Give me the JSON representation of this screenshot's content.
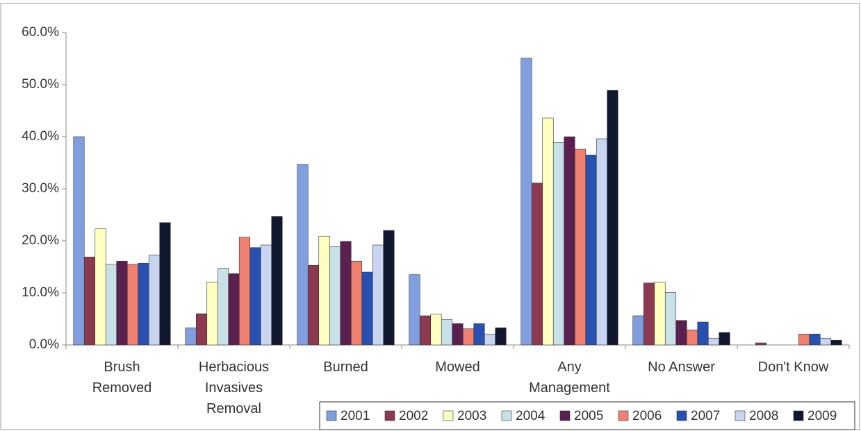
{
  "chart_data": {
    "type": "bar",
    "categories": [
      "Brush Removed",
      "Herbacious Invasives Removal",
      "Burned",
      "Mowed",
      "Any Management",
      "No Answer",
      "Don't Know"
    ],
    "series": [
      {
        "name": "2001",
        "color": "#7f9fdf",
        "values": [
          40.0,
          3.3,
          34.7,
          13.5,
          55.1,
          5.6,
          0
        ]
      },
      {
        "name": "2002",
        "color": "#8b3a52",
        "values": [
          16.9,
          6.0,
          15.3,
          5.6,
          31.1,
          11.9,
          0.4
        ]
      },
      {
        "name": "2003",
        "color": "#ffffc0",
        "values": [
          22.3,
          12.1,
          20.9,
          5.9,
          43.6,
          12.1,
          0
        ]
      },
      {
        "name": "2004",
        "color": "#c8e0e8",
        "values": [
          15.5,
          14.7,
          18.9,
          4.9,
          38.9,
          10.1,
          0
        ]
      },
      {
        "name": "2005",
        "color": "#5a2050",
        "values": [
          16.1,
          13.7,
          19.9,
          4.1,
          40.0,
          4.7,
          0
        ]
      },
      {
        "name": "2006",
        "color": "#f08070",
        "values": [
          15.5,
          20.7,
          16.1,
          3.1,
          37.6,
          2.9,
          2.1
        ]
      },
      {
        "name": "2007",
        "color": "#2850b0",
        "values": [
          15.7,
          18.7,
          14.0,
          4.1,
          36.5,
          4.4,
          2.1
        ]
      },
      {
        "name": "2008",
        "color": "#c8d4f0",
        "values": [
          17.3,
          19.2,
          19.2,
          2.1,
          39.6,
          1.3,
          1.3
        ]
      },
      {
        "name": "2009",
        "color": "#101830",
        "values": [
          23.5,
          24.7,
          22.0,
          3.3,
          48.9,
          2.4,
          0.9
        ]
      }
    ],
    "ylim": [
      0,
      60
    ],
    "yticks": [
      {
        "value": 0,
        "label": "0.0%"
      },
      {
        "value": 10,
        "label": "10.0%"
      },
      {
        "value": 20,
        "label": "20.0%"
      },
      {
        "value": 30,
        "label": "30.0%"
      },
      {
        "value": 40,
        "label": "40.0%"
      },
      {
        "value": 50,
        "label": "50.0%"
      },
      {
        "value": 60,
        "label": "60.0%"
      }
    ],
    "grid": false,
    "legend": "bottom-right"
  }
}
